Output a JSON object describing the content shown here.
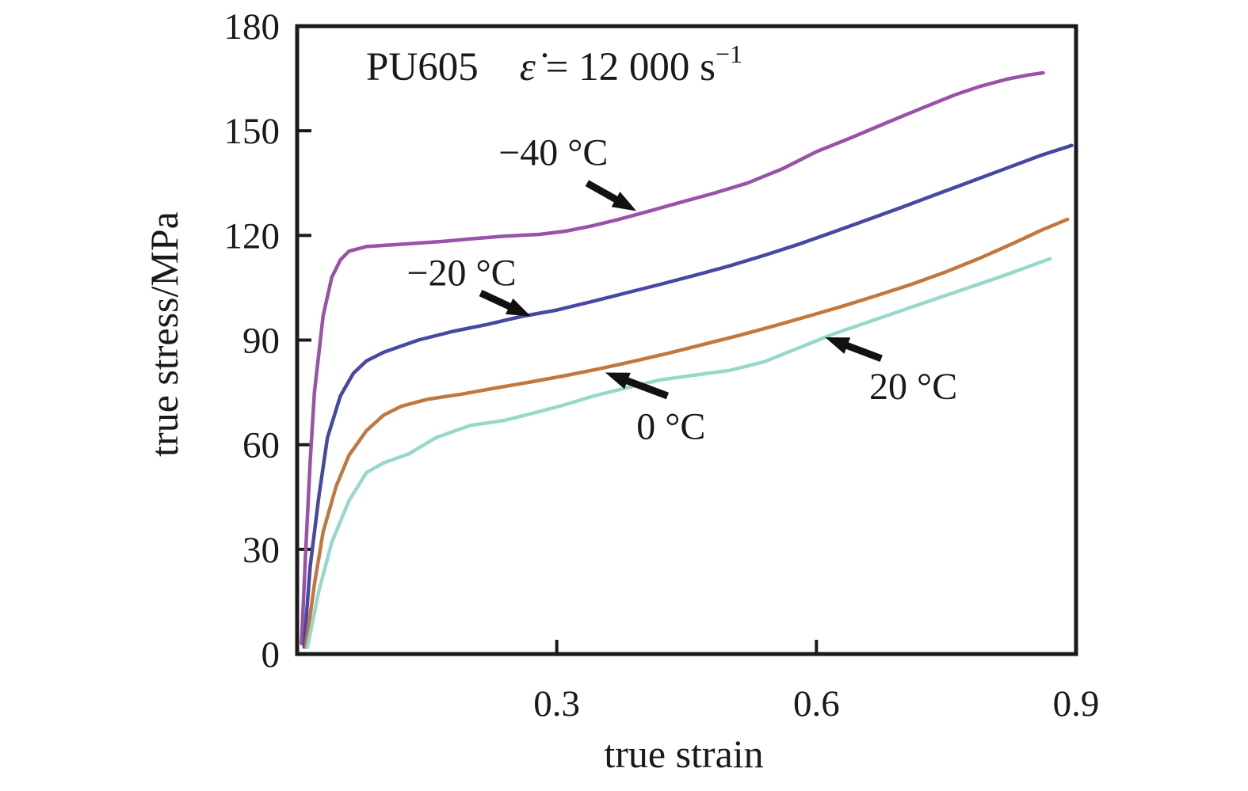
{
  "page": {
    "background": "#ffffff"
  },
  "chart_data": {
    "type": "line",
    "title": "PU605 ε̇ = 12 000 s⁻¹",
    "title_parts": {
      "model": "PU605",
      "symbol": "ε̇",
      "equals": " = 12 000 s",
      "exponent": "−1"
    },
    "xlabel": "true strain",
    "ylabel": "true stress/MPa",
    "xlim": [
      0,
      0.9
    ],
    "ylim": [
      0,
      180
    ],
    "xticks": [
      0.3,
      0.6,
      0.9
    ],
    "xtick_labels": [
      "0.3",
      "0.6",
      "0.9"
    ],
    "yticks": [
      0,
      30,
      60,
      90,
      120,
      150,
      180
    ],
    "ytick_labels": [
      "0",
      "30",
      "60",
      "90",
      "120",
      "150",
      "180"
    ],
    "grid": false,
    "axis_color": "#1a1a1a",
    "series": [
      {
        "id": "minus-40c",
        "name": "−40 °C",
        "temperature_c": -40,
        "color": "#9952a8",
        "points": [
          [
            0.005,
            3
          ],
          [
            0.01,
            30
          ],
          [
            0.015,
            55
          ],
          [
            0.02,
            75
          ],
          [
            0.03,
            97
          ],
          [
            0.04,
            108
          ],
          [
            0.05,
            113
          ],
          [
            0.06,
            115.5
          ],
          [
            0.08,
            116.8
          ],
          [
            0.11,
            117.3
          ],
          [
            0.14,
            117.8
          ],
          [
            0.17,
            118.3
          ],
          [
            0.2,
            119
          ],
          [
            0.24,
            119.8
          ],
          [
            0.28,
            120.3
          ],
          [
            0.31,
            121.2
          ],
          [
            0.34,
            122.7
          ],
          [
            0.37,
            124.5
          ],
          [
            0.4,
            126.5
          ],
          [
            0.44,
            129.3
          ],
          [
            0.48,
            132
          ],
          [
            0.52,
            135
          ],
          [
            0.56,
            139
          ],
          [
            0.6,
            144
          ],
          [
            0.64,
            148
          ],
          [
            0.68,
            152.2
          ],
          [
            0.72,
            156.3
          ],
          [
            0.76,
            160.3
          ],
          [
            0.79,
            162.8
          ],
          [
            0.82,
            164.8
          ],
          [
            0.845,
            166
          ],
          [
            0.862,
            166.6
          ]
        ]
      },
      {
        "id": "minus-20c",
        "name": "−20 °C",
        "temperature_c": -20,
        "color": "#4648a2",
        "points": [
          [
            0.008,
            2
          ],
          [
            0.015,
            25
          ],
          [
            0.025,
            45
          ],
          [
            0.035,
            62
          ],
          [
            0.05,
            74
          ],
          [
            0.065,
            80.5
          ],
          [
            0.08,
            84
          ],
          [
            0.1,
            86.5
          ],
          [
            0.14,
            90
          ],
          [
            0.18,
            92.5
          ],
          [
            0.22,
            94.5
          ],
          [
            0.26,
            96.8
          ],
          [
            0.3,
            98.6
          ],
          [
            0.34,
            101
          ],
          [
            0.38,
            103.5
          ],
          [
            0.42,
            106
          ],
          [
            0.46,
            108.6
          ],
          [
            0.5,
            111.3
          ],
          [
            0.54,
            114.3
          ],
          [
            0.58,
            117.5
          ],
          [
            0.62,
            121
          ],
          [
            0.66,
            124.6
          ],
          [
            0.7,
            128.2
          ],
          [
            0.74,
            131.9
          ],
          [
            0.78,
            135.6
          ],
          [
            0.82,
            139.3
          ],
          [
            0.86,
            143
          ],
          [
            0.895,
            145.8
          ]
        ]
      },
      {
        "id": "0c",
        "name": "0 °C",
        "temperature_c": 0,
        "color": "#c0783f",
        "points": [
          [
            0.01,
            2
          ],
          [
            0.02,
            20
          ],
          [
            0.03,
            35
          ],
          [
            0.045,
            48
          ],
          [
            0.06,
            57
          ],
          [
            0.08,
            64
          ],
          [
            0.1,
            68.5
          ],
          [
            0.12,
            71
          ],
          [
            0.15,
            73
          ],
          [
            0.19,
            74.5
          ],
          [
            0.23,
            76.3
          ],
          [
            0.27,
            78
          ],
          [
            0.31,
            79.8
          ],
          [
            0.35,
            81.8
          ],
          [
            0.39,
            84
          ],
          [
            0.43,
            86.3
          ],
          [
            0.47,
            88.8
          ],
          [
            0.51,
            91.3
          ],
          [
            0.55,
            94
          ],
          [
            0.59,
            96.8
          ],
          [
            0.63,
            99.7
          ],
          [
            0.67,
            102.8
          ],
          [
            0.71,
            106
          ],
          [
            0.75,
            109.6
          ],
          [
            0.79,
            113.6
          ],
          [
            0.83,
            118
          ],
          [
            0.86,
            121.5
          ],
          [
            0.89,
            124.6
          ]
        ]
      },
      {
        "id": "20c",
        "name": "20 °C",
        "temperature_c": 20,
        "color": "#96d8cc",
        "points": [
          [
            0.012,
            2
          ],
          [
            0.025,
            18
          ],
          [
            0.04,
            32
          ],
          [
            0.06,
            44
          ],
          [
            0.08,
            52
          ],
          [
            0.1,
            54.8
          ],
          [
            0.13,
            57.5
          ],
          [
            0.16,
            62
          ],
          [
            0.2,
            65.5
          ],
          [
            0.24,
            67
          ],
          [
            0.28,
            69.5
          ],
          [
            0.31,
            71.5
          ],
          [
            0.34,
            73.8
          ],
          [
            0.38,
            76.3
          ],
          [
            0.42,
            78.6
          ],
          [
            0.46,
            80
          ],
          [
            0.5,
            81.3
          ],
          [
            0.54,
            83.8
          ],
          [
            0.58,
            87.8
          ],
          [
            0.62,
            91.8
          ],
          [
            0.66,
            95.2
          ],
          [
            0.7,
            98.6
          ],
          [
            0.74,
            102
          ],
          [
            0.78,
            105.4
          ],
          [
            0.82,
            108.8
          ],
          [
            0.85,
            111.5
          ],
          [
            0.87,
            113.3
          ]
        ]
      }
    ],
    "annotations": [
      {
        "text": "−40 °C",
        "series_id": "minus-40c",
        "label": [
          0.296,
          144
        ],
        "tail": [
          0.335,
          135
        ],
        "tip": [
          0.392,
          127
        ]
      },
      {
        "text": "−20 °C",
        "series_id": "minus-20c",
        "label": [
          0.19,
          109.5
        ],
        "tail": [
          0.212,
          103.5
        ],
        "tip": [
          0.27,
          96.8
        ]
      },
      {
        "text": "0 °C",
        "series_id": "0c",
        "label": [
          0.432,
          65.5
        ],
        "tail": [
          0.428,
          74
        ],
        "tip": [
          0.356,
          80.7
        ]
      },
      {
        "text": "20 °C",
        "series_id": "20c",
        "label": [
          0.712,
          77
        ],
        "tail": [
          0.675,
          84.7
        ],
        "tip": [
          0.61,
          90.8
        ]
      }
    ]
  }
}
